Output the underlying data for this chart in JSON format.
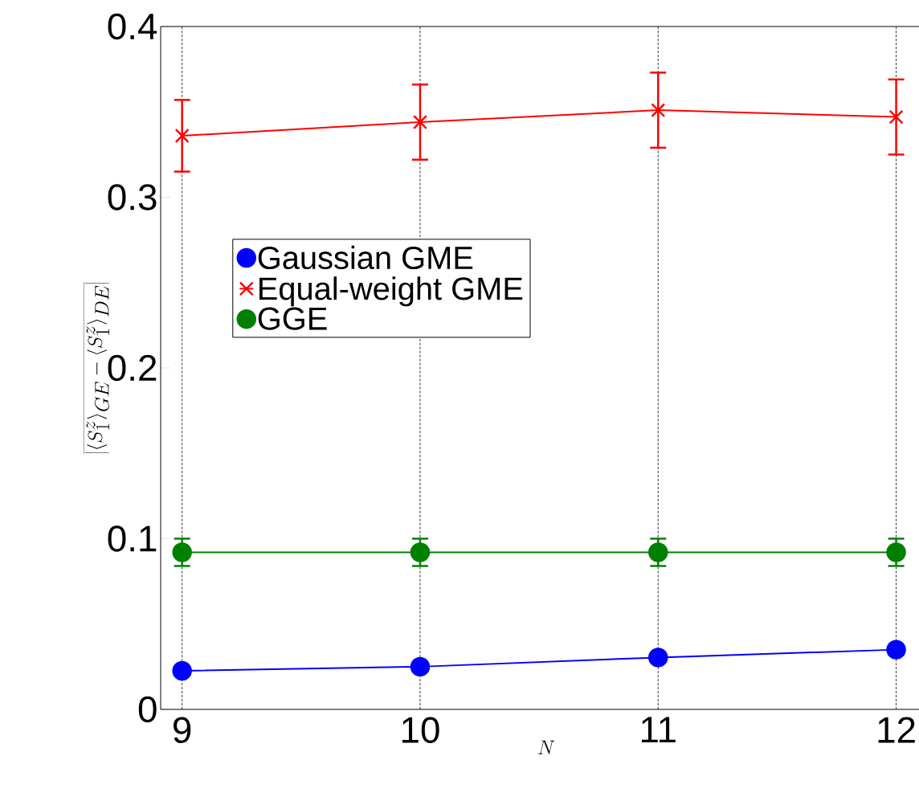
{
  "chart_data": {
    "type": "line",
    "xlabel": "N",
    "ylabel": "\\overline{\\left|\\langle S_1^z\\rangle_{GE}-\\langle S_1^z\\rangle_{DE}\\right|}",
    "x": [
      9,
      10,
      11,
      12
    ],
    "series": [
      {
        "name": "Gaussian GME",
        "color": "#0000ff",
        "marker": "circle",
        "values": [
          0.0226,
          0.025,
          0.0304,
          0.035
        ]
      },
      {
        "name": "Equal-weight GME",
        "color": "#ff0000",
        "marker": "cross",
        "values": [
          0.336,
          0.344,
          0.351,
          0.347
        ],
        "errors": [
          0.021,
          0.022,
          0.022,
          0.022
        ]
      },
      {
        "name": "GGE",
        "color": "#008000",
        "marker": "circle",
        "values": [
          0.092,
          0.092,
          0.092,
          0.092
        ],
        "errors": [
          0.008,
          0.008,
          0.008,
          0.008
        ]
      }
    ],
    "xlim": [
      8.91,
      12.15
    ],
    "ylim": [
      0,
      0.4
    ],
    "xticks": [
      9,
      10,
      11,
      12
    ],
    "yticks": [
      0,
      0.1,
      0.2,
      0.3,
      0.4
    ],
    "grid": "x",
    "legend": "left"
  }
}
